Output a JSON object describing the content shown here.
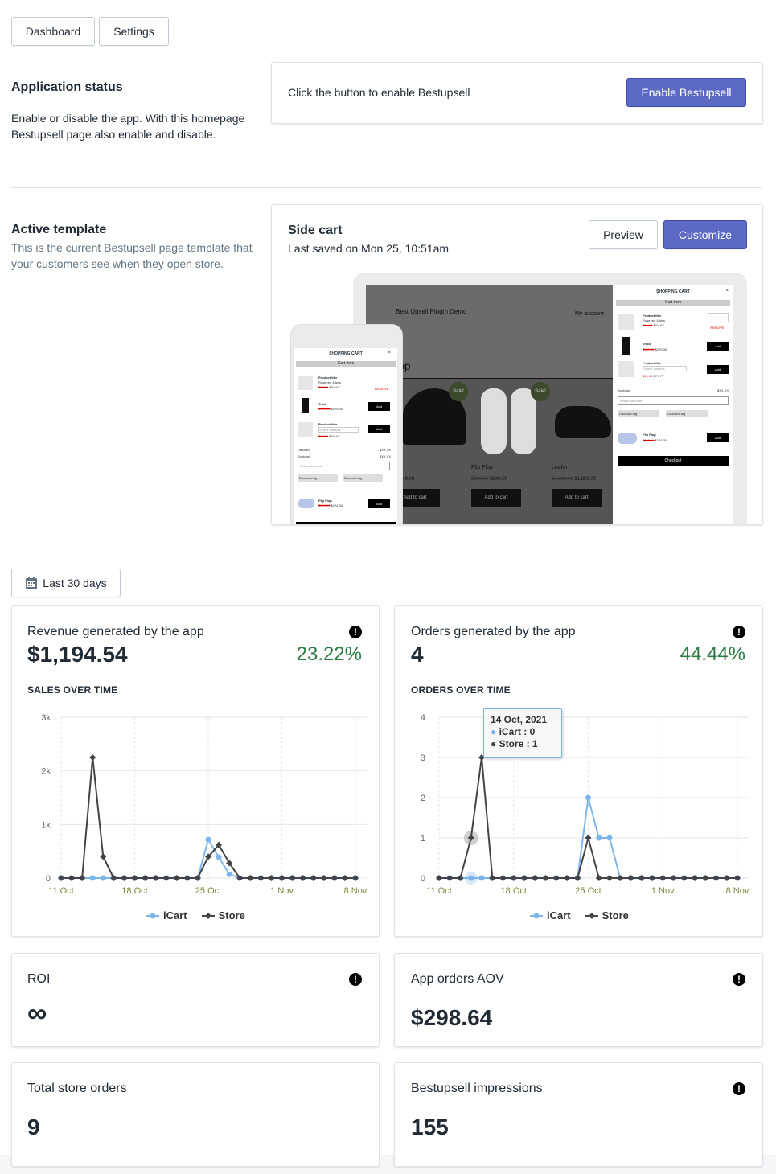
{
  "nav": {
    "dashboard": "Dashboard",
    "settings": "Settings"
  },
  "app_status": {
    "title": "Application status",
    "desc": "Enable or disable the app. With this homepage Bestupsell page also enable and disable.",
    "card_text": "Click the button to enable Bestupsell",
    "enable_label": "Enable Bestupsell"
  },
  "template": {
    "title": "Active template",
    "desc": "This is the current Bestupsell page template that your customers see when they open store.",
    "name": "Side cart",
    "saved": "Last saved on Mon 25, 10:51am",
    "preview_label": "Preview",
    "customize_label": "Customize",
    "mock": {
      "shop_title": "Best Upsell Plugin Demo",
      "my_account": "My account",
      "shopping_cart": "SHOPPING CART",
      "cart_item": "Cart Item",
      "product_title": "Product title",
      "product_variant": "Rose red 48pcs",
      "old_price": "$99.99",
      "price": "$YY.YY",
      "remove": "REMOVE",
      "track": "Track",
      "track_old": "$399.00",
      "track_price": "$279.30",
      "select_variants": "Select Variants",
      "add": "Add",
      "discount_label": "Discount",
      "discount_value": "- $XX.XX",
      "subtotal": "Subtotal",
      "subtotal_value": "$XX.XX",
      "select_discount": "Select discount",
      "discount_tag": "Discount tag",
      "flip_flop": "Flip Flop",
      "flip_old": "$249.00",
      "flip_price": "$174.30",
      "checkout": "Checkout",
      "loafer": "Loafer",
      "loafer_old": "$1,299.00",
      "loafer_price": "$1,899.00",
      "price_49": "$49.00",
      "flip_grid_old": "$399.00",
      "flip_grid_price": "$249.00",
      "add_to_cart": "Add to cart",
      "sale": "Sale!",
      "shop_heading": "op"
    }
  },
  "range": {
    "label": "Last 30 days"
  },
  "revenue": {
    "title": "Revenue generated by the app",
    "value": "$1,194.54",
    "pct": "23.22%",
    "sub": "SALES OVER TIME"
  },
  "orders": {
    "title": "Orders generated by the app",
    "value": "4",
    "pct": "44.44%",
    "sub": "ORDERS OVER TIME",
    "tooltip": {
      "date": "14 Oct, 2021",
      "icart": "iCart : 0",
      "store": "Store : 1"
    }
  },
  "legend": {
    "icart": "iCart",
    "store": "Store"
  },
  "roi": {
    "title": "ROI",
    "value": "∞"
  },
  "aov": {
    "title": "App orders AOV",
    "value": "$298.64"
  },
  "total_orders": {
    "title": "Total store orders",
    "value": "9"
  },
  "impressions": {
    "title": "Bestupsell impressions",
    "value": "155"
  },
  "colors": {
    "primary": "#5c6ac4",
    "positive": "#2e7d46",
    "icart": "#7cb5ec",
    "store": "#434348"
  },
  "chart_data": [
    {
      "type": "line",
      "title": "SALES OVER TIME",
      "x_start": "11 Oct",
      "x_ticks": [
        "11 Oct",
        "18 Oct",
        "25 Oct",
        "1 Nov",
        "8 Nov"
      ],
      "y_ticks": [
        "0",
        "1k",
        "2k",
        "3k"
      ],
      "ylim": [
        0,
        3000
      ],
      "series": [
        {
          "name": "iCart",
          "values": [
            0,
            0,
            0,
            0,
            0,
            0,
            0,
            0,
            0,
            0,
            0,
            0,
            0,
            0,
            720,
            390,
            70,
            0,
            0,
            0,
            0,
            0,
            0,
            0,
            0,
            0,
            0,
            0,
            0
          ]
        },
        {
          "name": "Store",
          "values": [
            0,
            0,
            0,
            2250,
            400,
            0,
            0,
            0,
            0,
            0,
            0,
            0,
            0,
            0,
            400,
            620,
            280,
            0,
            0,
            0,
            0,
            0,
            0,
            0,
            0,
            0,
            0,
            0,
            0
          ]
        }
      ],
      "legend": "bottom"
    },
    {
      "type": "line",
      "title": "ORDERS OVER TIME",
      "x_start": "11 Oct",
      "x_ticks": [
        "11 Oct",
        "18 Oct",
        "25 Oct",
        "1 Nov",
        "8 Nov"
      ],
      "y_ticks": [
        "0",
        "1",
        "2",
        "3",
        "4"
      ],
      "ylim": [
        0,
        4
      ],
      "series": [
        {
          "name": "iCart",
          "values": [
            0,
            0,
            0,
            0,
            0,
            0,
            0,
            0,
            0,
            0,
            0,
            0,
            0,
            0,
            2,
            1,
            1,
            0,
            0,
            0,
            0,
            0,
            0,
            0,
            0,
            0,
            0,
            0,
            0
          ]
        },
        {
          "name": "Store",
          "values": [
            0,
            0,
            0,
            1,
            3,
            0,
            0,
            0,
            0,
            0,
            0,
            0,
            0,
            0,
            1,
            0,
            0,
            0,
            0,
            0,
            0,
            0,
            0,
            0,
            0,
            0,
            0,
            0,
            0
          ]
        }
      ],
      "legend": "bottom"
    }
  ]
}
